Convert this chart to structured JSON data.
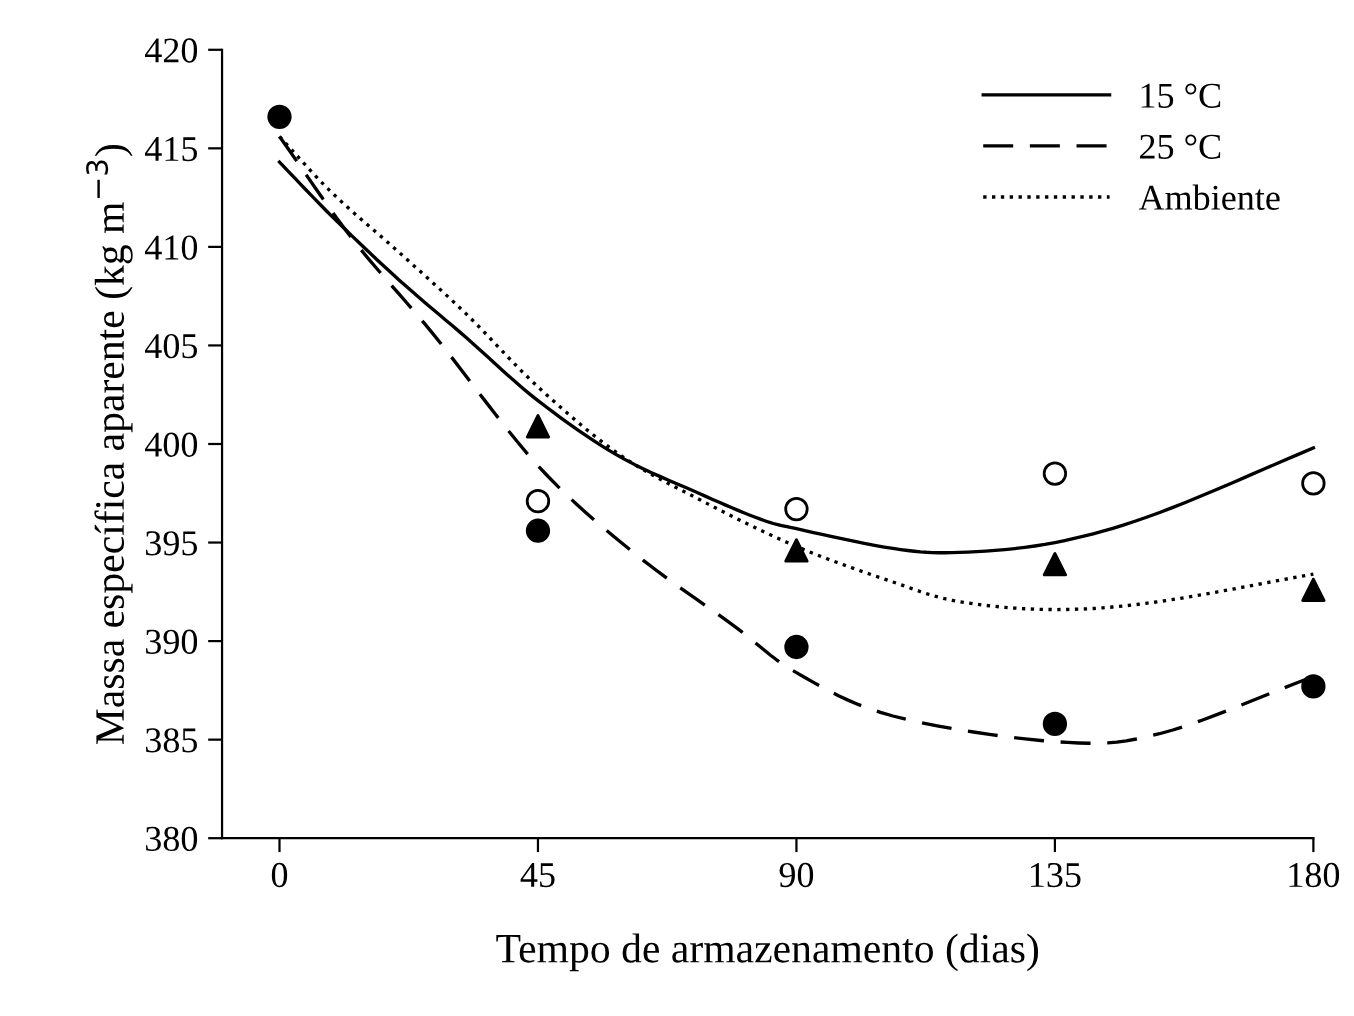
{
  "chart_data": {
    "type": "line",
    "xlabel": "Tempo de armazenamento (dias)",
    "ylabel": "Massa específica aparente (kg m$^{−3}$)",
    "xlim": [
      -10,
      180
    ],
    "ylim": [
      380,
      420
    ],
    "xticks": [
      0,
      45,
      90,
      135,
      180
    ],
    "yticks": [
      380,
      385,
      390,
      395,
      400,
      405,
      410,
      415,
      420
    ],
    "grid": false,
    "legend": "top right",
    "series": [
      {
        "name": "15 °C",
        "line_style": "solid",
        "color": "#000000",
        "x": [
          0,
          9.3,
          20.9,
          32.5,
          45,
          59,
          73,
          83.6,
          90,
          106.8,
          118.4,
          135,
          153,
          180
        ],
        "values": [
          414.3,
          411.5,
          408.3,
          405.4,
          402.2,
          399.4,
          397.5,
          396.2,
          395.7,
          394.7,
          394.5,
          395,
          396.5,
          399.8
        ]
      },
      {
        "name": "25 °C",
        "line_style": "dashed",
        "color": "#000000",
        "x": [
          0,
          12.7,
          26.7,
          45,
          61.6,
          79,
          90,
          106.8,
          135,
          153.2,
          180
        ],
        "values": [
          415.6,
          410.4,
          405.6,
          398.9,
          394.5,
          390.8,
          388.4,
          386.2,
          384.9,
          385.3,
          388.2
        ]
      },
      {
        "name": "Ambiente",
        "line_style": "dotted",
        "color": "#000000",
        "x": [
          0,
          9.3,
          20.9,
          32.5,
          45,
          59,
          73,
          90,
          106.8,
          118.4,
          135,
          153,
          180
        ],
        "values": [
          415.6,
          412.7,
          409.7,
          406.6,
          402.9,
          399.5,
          397.2,
          394.8,
          393,
          392,
          391.6,
          392,
          393.4
        ]
      },
      {
        "type": "scatter",
        "marker": "circle",
        "color": "#ffffff",
        "x": [
          45,
          90,
          135,
          180
        ],
        "values": [
          397.1,
          396.7,
          398.5,
          398
        ]
      },
      {
        "type": "scatter",
        "marker": "triangle",
        "color": "#000000",
        "x": [
          45,
          90,
          135,
          180
        ],
        "values": [
          400.9,
          394.6,
          393.9,
          392.6
        ]
      },
      {
        "type": "scatter",
        "marker": "circle",
        "color": "#000000",
        "x": [
          0,
          45,
          90,
          135,
          180
        ],
        "values": [
          416.6,
          395.6,
          389.7,
          385.8,
          387.7
        ]
      }
    ]
  }
}
